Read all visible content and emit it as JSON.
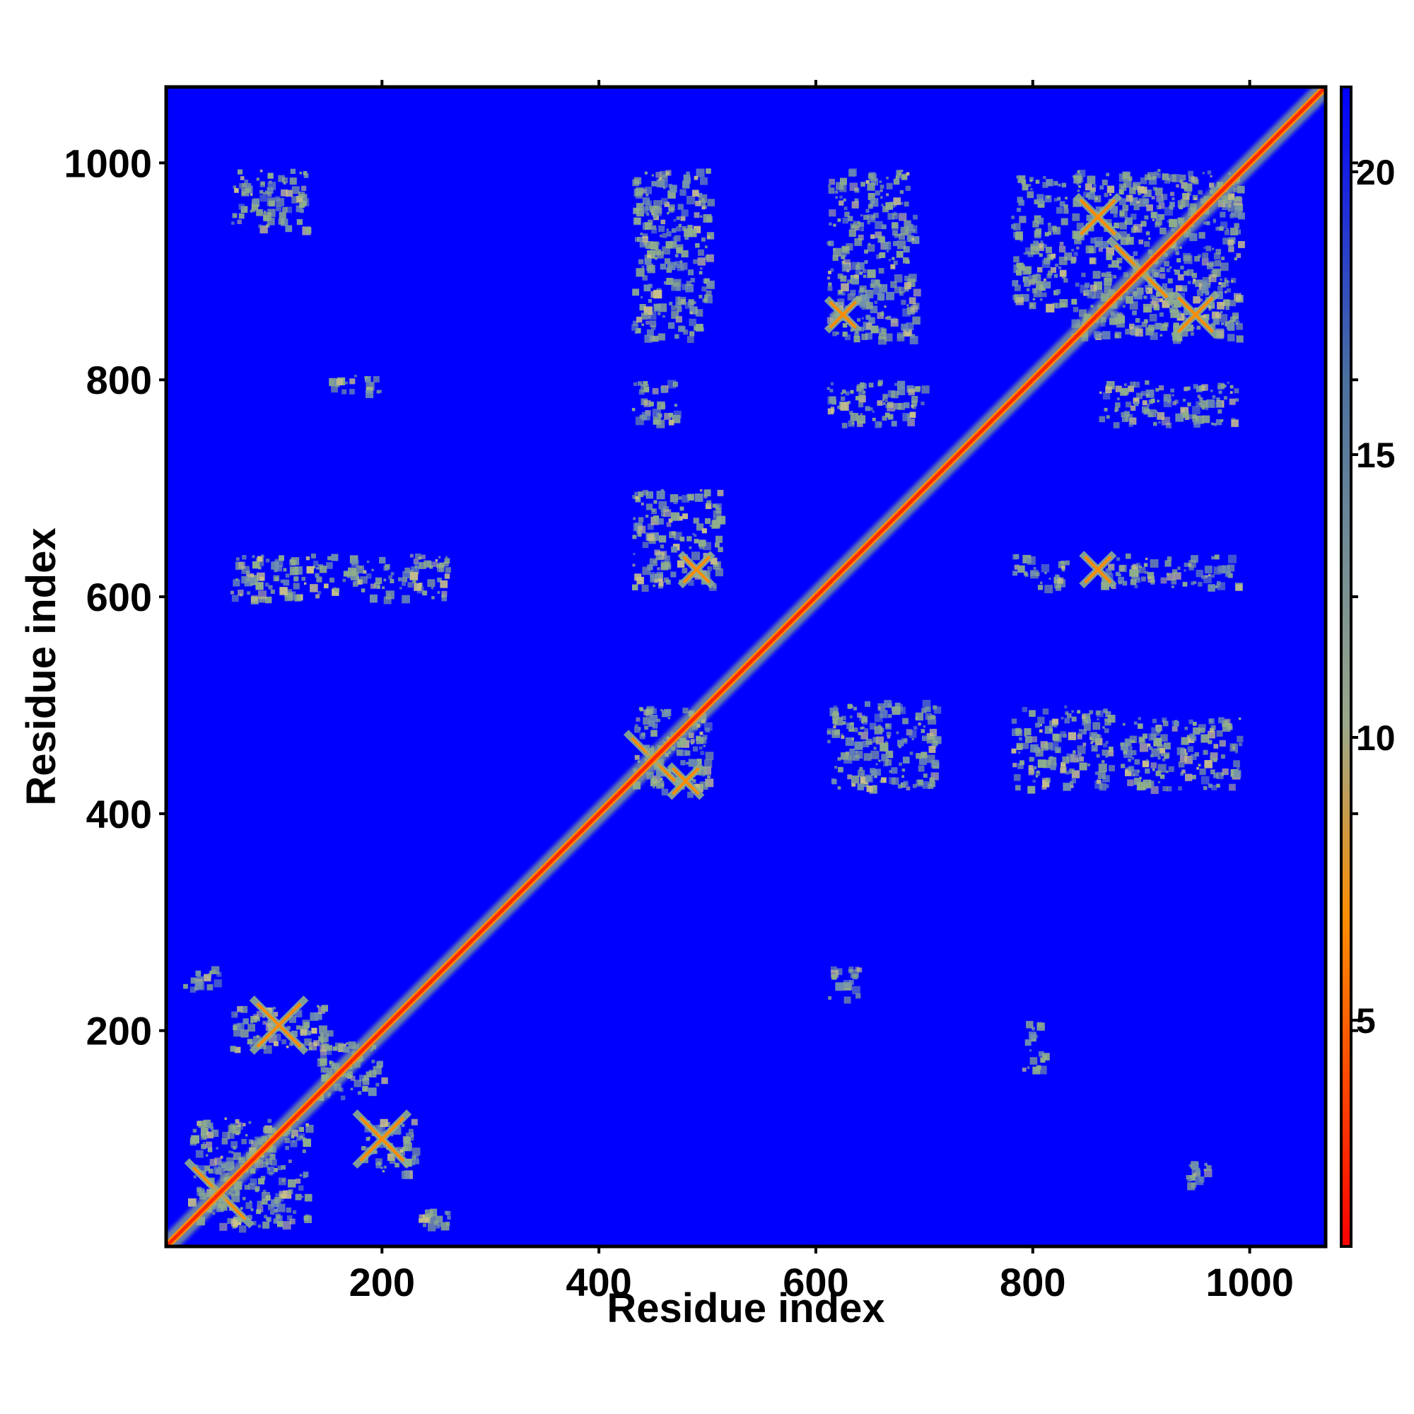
{
  "chart_data": {
    "type": "heatmap",
    "title": "",
    "xlabel": "Residue index",
    "ylabel": "Residue index",
    "xlim": [
      1,
      1070
    ],
    "ylim": [
      1,
      1070
    ],
    "x_ticks": [
      200,
      400,
      600,
      800,
      1000
    ],
    "y_ticks": [
      200,
      400,
      600,
      800,
      1000
    ],
    "colorbar": {
      "range": [
        1,
        21.5
      ],
      "ticks": [
        5,
        10,
        15,
        20
      ],
      "colors": [
        "#ff0000",
        "#ff8c00",
        "#9aa78a",
        "#4a6fa0",
        "#0000ff"
      ]
    },
    "background_color": "#0000ff",
    "diagonal_color": "#ff2a00",
    "contact_color": "#8fae8c",
    "contact_blocks": [
      {
        "x": [
          835,
          990
        ],
        "y": [
          840,
          995
        ],
        "level": 10
      },
      {
        "x": [
          430,
          500
        ],
        "y": [
          420,
          500
        ],
        "level": 10
      },
      {
        "x": [
          610,
          710
        ],
        "y": [
          425,
          505
        ],
        "level": 10
      },
      {
        "x": [
          780,
          870
        ],
        "y": [
          425,
          500
        ],
        "level": 11
      },
      {
        "x": [
          880,
          990
        ],
        "y": [
          425,
          490
        ],
        "level": 11
      },
      {
        "x": [
          430,
          510
        ],
        "y": [
          610,
          700
        ],
        "level": 10
      },
      {
        "x": [
          860,
          990
        ],
        "y": [
          610,
          640
        ],
        "level": 10
      },
      {
        "x": [
          780,
          830
        ],
        "y": [
          610,
          640
        ],
        "level": 11
      },
      {
        "x": [
          430,
          500
        ],
        "y": [
          840,
          995
        ],
        "level": 11
      },
      {
        "x": [
          610,
          690
        ],
        "y": [
          840,
          995
        ],
        "level": 11
      },
      {
        "x": [
          780,
          830
        ],
        "y": [
          870,
          990
        ],
        "level": 12
      },
      {
        "x": [
          610,
          700
        ],
        "y": [
          760,
          800
        ],
        "level": 12
      },
      {
        "x": [
          430,
          470
        ],
        "y": [
          760,
          800
        ],
        "level": 12
      },
      {
        "x": [
          860,
          990
        ],
        "y": [
          760,
          800
        ],
        "level": 12
      },
      {
        "x": [
          150,
          200
        ],
        "y": [
          790,
          805
        ],
        "level": 11
      },
      {
        "x": [
          60,
          130
        ],
        "y": [
          940,
          995
        ],
        "level": 13
      },
      {
        "x": [
          60,
          260
        ],
        "y": [
          600,
          640
        ],
        "level": 12
      },
      {
        "x": [
          60,
          150
        ],
        "y": [
          185,
          225
        ],
        "level": 10
      },
      {
        "x": [
          180,
          230
        ],
        "y": [
          70,
          120
        ],
        "level": 9
      },
      {
        "x": [
          20,
          130
        ],
        "y": [
          20,
          120
        ],
        "level": 9
      },
      {
        "x": [
          140,
          200
        ],
        "y": [
          140,
          190
        ],
        "level": 10
      },
      {
        "x": [
          15,
          50
        ],
        "y": [
          240,
          260
        ],
        "level": 11
      },
      {
        "x": [
          230,
          260
        ],
        "y": [
          20,
          40
        ],
        "level": 12
      },
      {
        "x": [
          610,
          640
        ],
        "y": [
          230,
          260
        ],
        "level": 12
      },
      {
        "x": [
          790,
          810
        ],
        "y": [
          160,
          210
        ],
        "level": 12
      },
      {
        "x": [
          940,
          960
        ],
        "y": [
          60,
          80
        ],
        "level": 12
      }
    ],
    "cross_points": [
      {
        "x": 50,
        "y": 50,
        "size": 30
      },
      {
        "x": 105,
        "y": 205,
        "size": 25
      },
      {
        "x": 200,
        "y": 100,
        "size": 25
      },
      {
        "x": 450,
        "y": 450,
        "size": 25
      },
      {
        "x": 480,
        "y": 430,
        "size": 15
      },
      {
        "x": 860,
        "y": 950,
        "size": 20
      },
      {
        "x": 950,
        "y": 860,
        "size": 20
      },
      {
        "x": 900,
        "y": 900,
        "size": 30
      },
      {
        "x": 625,
        "y": 860,
        "size": 15
      },
      {
        "x": 860,
        "y": 625,
        "size": 15
      },
      {
        "x": 490,
        "y": 625,
        "size": 15
      }
    ]
  }
}
